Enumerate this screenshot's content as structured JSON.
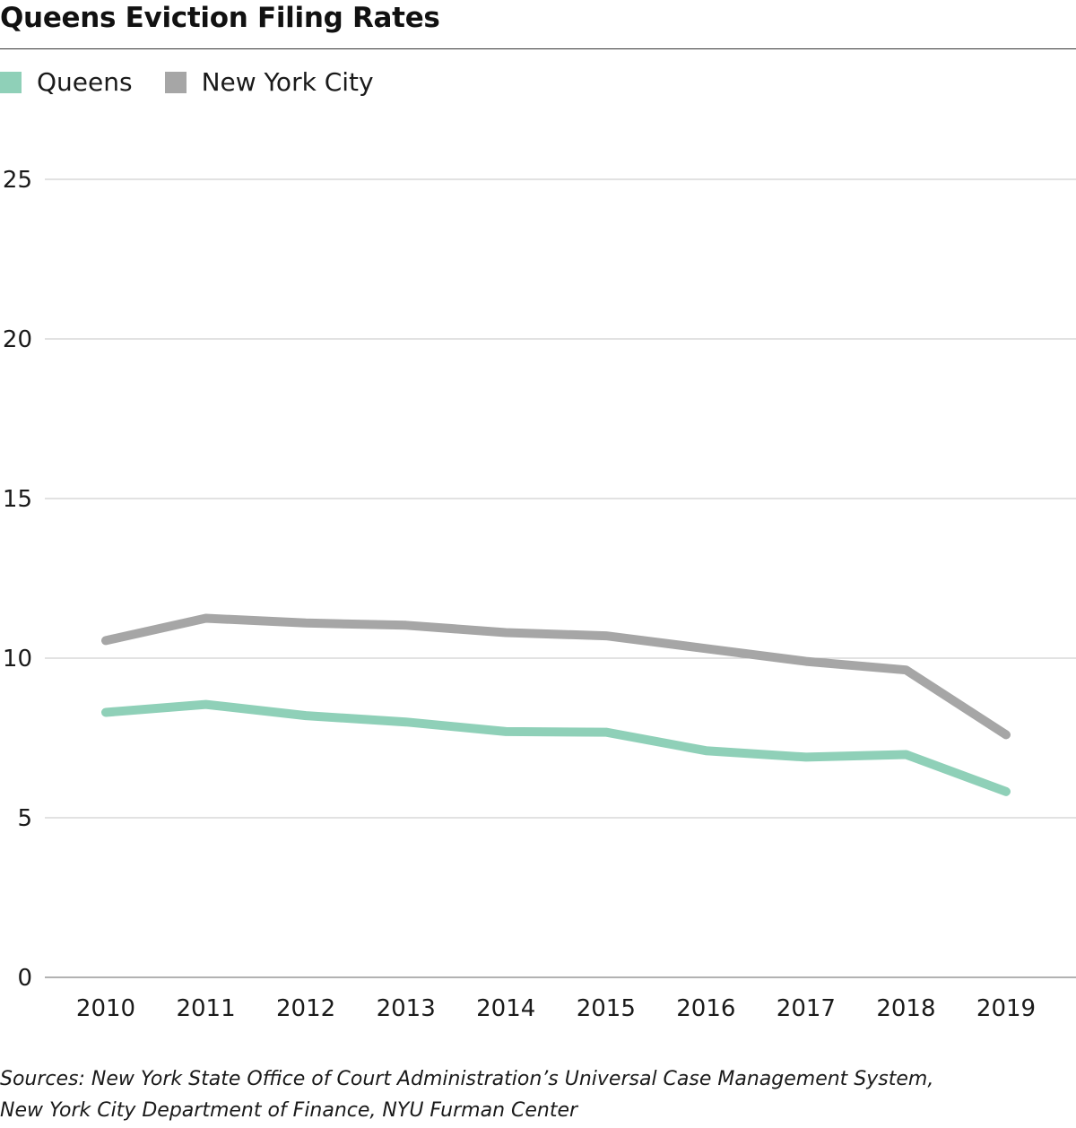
{
  "title": "Queens Eviction Filing Rates",
  "legend": [
    {
      "label": "Queens",
      "color": "#8fd0b8"
    },
    {
      "label": "New York City",
      "color": "#a6a6a6"
    }
  ],
  "sources": {
    "line1": "Sources: New York State Office of Court Administration’s Universal Case Management System,",
    "line2": "New York City Department of Finance, NYU Furman Center"
  },
  "chart_data": {
    "type": "line",
    "x": [
      "2010",
      "2011",
      "2012",
      "2013",
      "2014",
      "2015",
      "2016",
      "2017",
      "2018",
      "2019"
    ],
    "series": [
      {
        "name": "Queens",
        "color": "#8fd0b8",
        "values": [
          8.3,
          8.55,
          8.2,
          8.0,
          7.7,
          7.68,
          7.1,
          6.9,
          6.98,
          5.82
        ]
      },
      {
        "name": "New York City",
        "color": "#a6a6a6",
        "values": [
          10.55,
          11.25,
          11.1,
          11.03,
          10.8,
          10.7,
          10.3,
          9.9,
          9.63,
          7.6
        ]
      }
    ],
    "yticks": [
      0,
      5,
      10,
      15,
      20,
      25
    ],
    "ylim": [
      0,
      25
    ],
    "grid": true,
    "legend_position": "top-left",
    "title": "Queens Eviction Filing Rates",
    "xlabel": "",
    "ylabel": ""
  }
}
